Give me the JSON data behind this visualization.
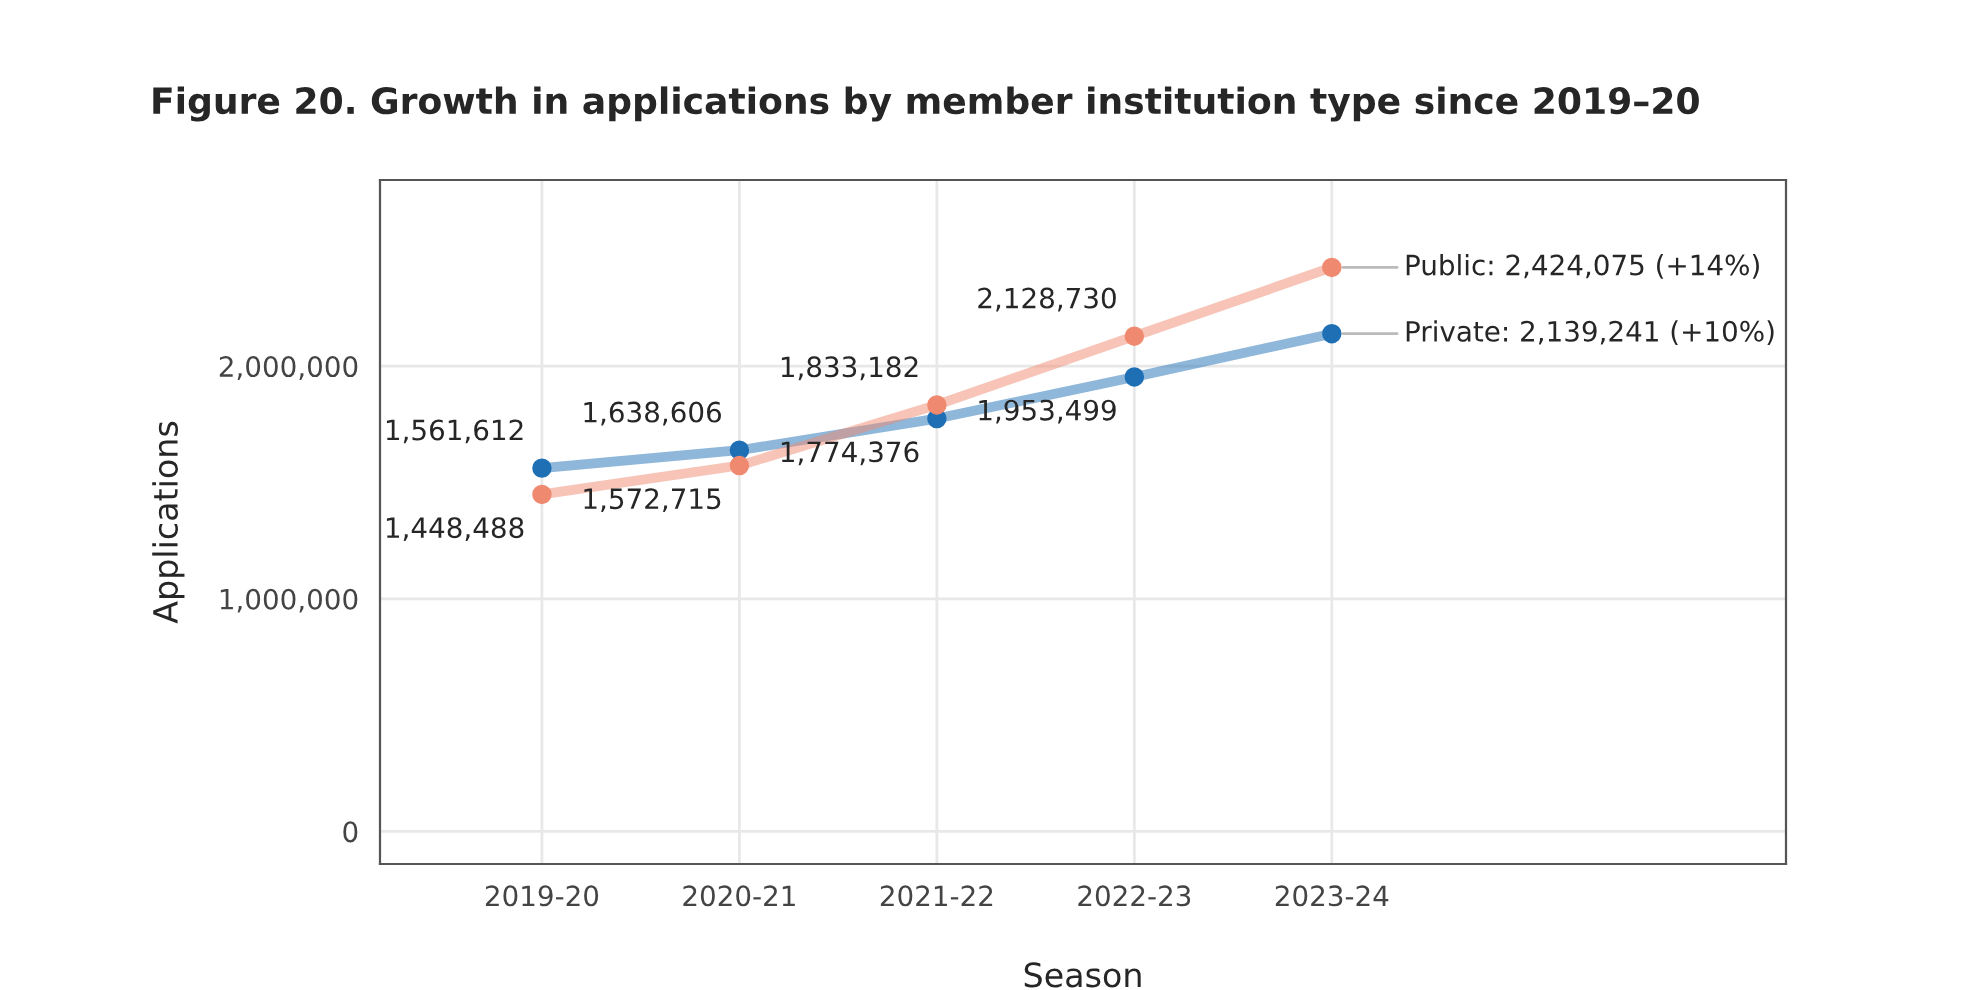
{
  "chart_data": {
    "type": "line",
    "title": "Figure 20. Growth in applications by member institution type since 2019–20",
    "xlabel": "Season",
    "ylabel": "Applications",
    "categories": [
      "2019-20",
      "2020-21",
      "2021-22",
      "2022-23",
      "2023-24"
    ],
    "series": [
      {
        "color": "#1f6fb5",
        "values": [
          1561612,
          1638606,
          1774376,
          1953499,
          2139241
        ],
        "value_labels": [
          "1,561,612",
          "1,638,606",
          "1,774,376",
          "1,953,499",
          null
        ]
      },
      {
        "color": "#ef8a70",
        "values": [
          1448488,
          1572715,
          1833182,
          2128730,
          2424075
        ],
        "value_labels": [
          "1,448,488",
          "1,572,715",
          "1,833,182",
          "2,128,730",
          null
        ]
      }
    ],
    "annotations": [
      {
        "text": "Public: 2,424,075 (+14%)",
        "x": "2023-24",
        "y": 2424075
      },
      {
        "text": "Private: 2,139,241 (+10%)",
        "x": "2023-24",
        "y": 2139241
      }
    ],
    "ylim": [
      -140000,
      2800000
    ],
    "yticks": [
      {
        "value": 0,
        "label": "0"
      },
      {
        "value": 1000000,
        "label": "1,000,000"
      },
      {
        "value": 2000000,
        "label": "2,000,000"
      }
    ],
    "grid": true,
    "marker": "circle",
    "line_style": "solid"
  }
}
